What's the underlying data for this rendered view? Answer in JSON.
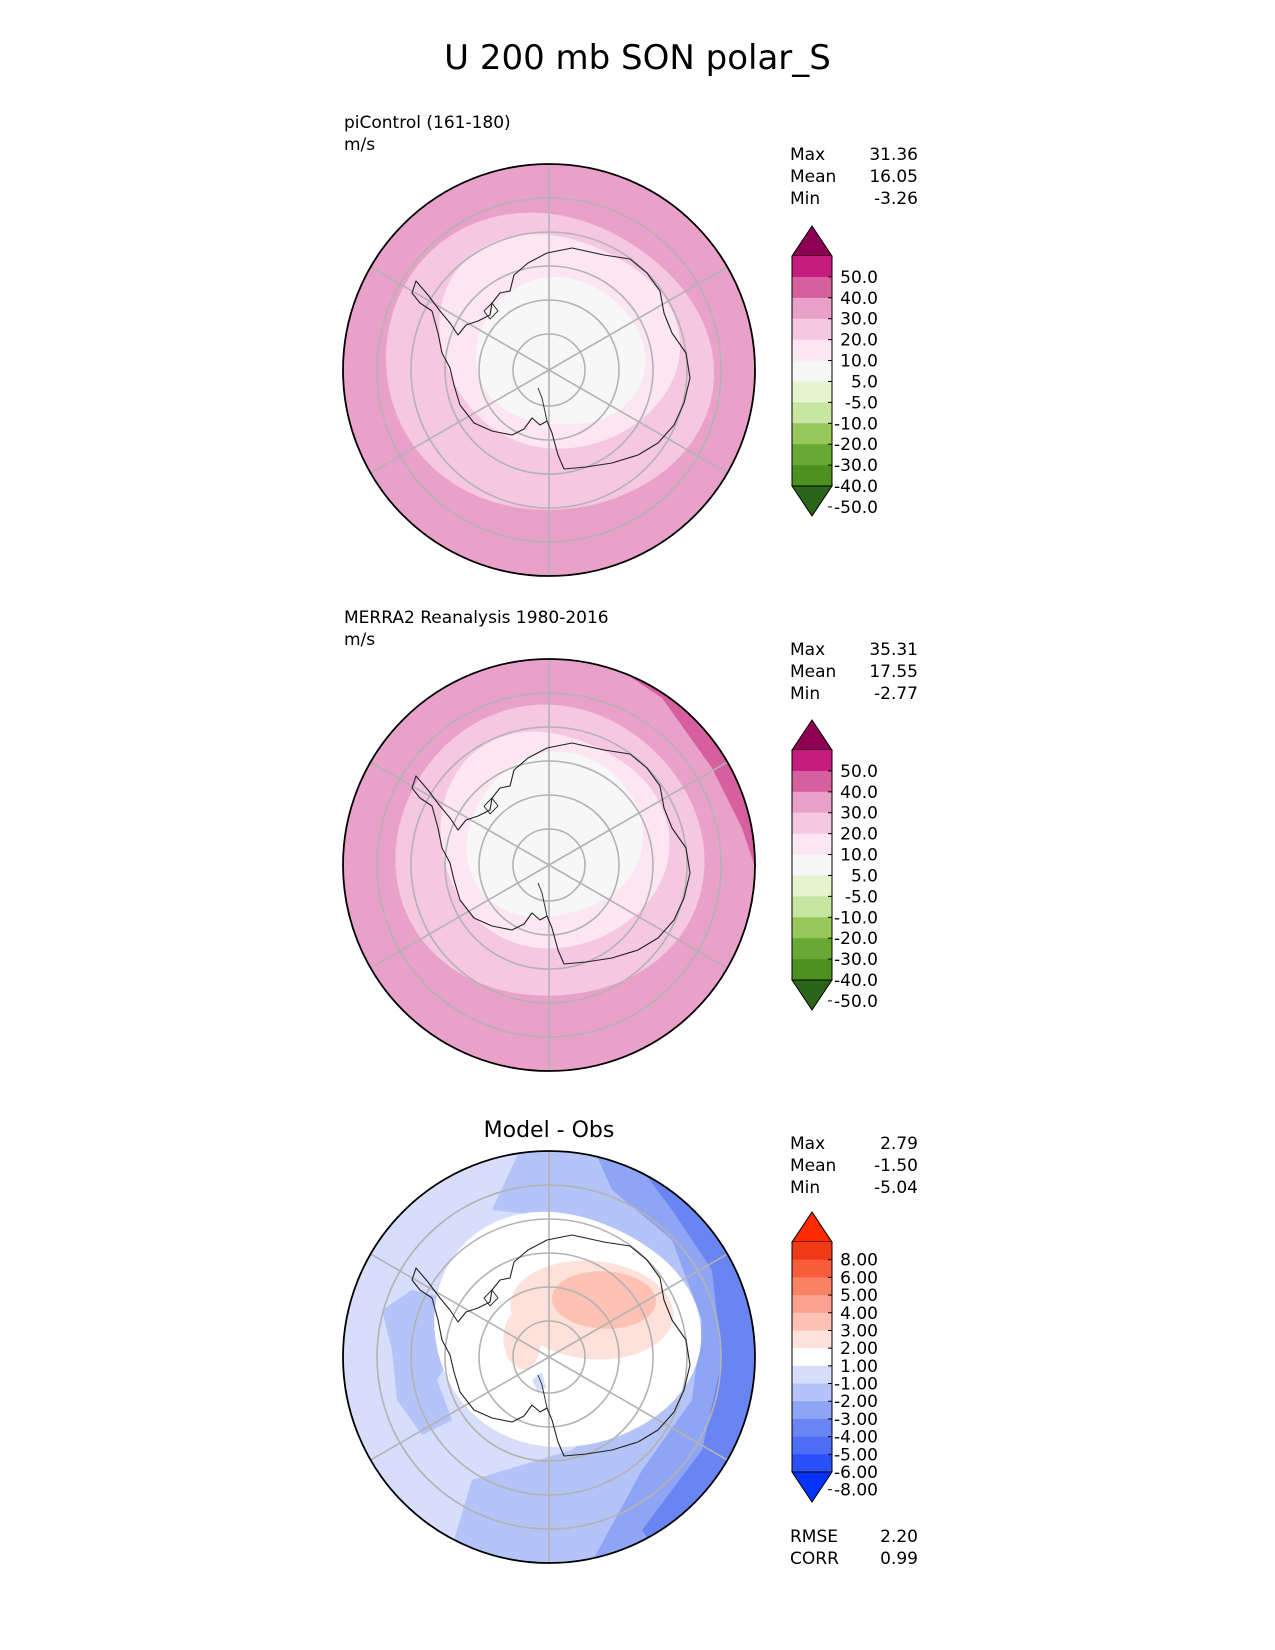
{
  "title": "U 200 mb SON polar_S",
  "palettes": {
    "pink_green": [
      "#276419",
      "#4d9221",
      "#7fbc41",
      "#b8e186",
      "#e6f5d0",
      "#f7f7f7",
      "#fde0ef",
      "#f1b6da",
      "#de77ae",
      "#c51b7d",
      "#8e0152"
    ],
    "pink_green_fill": [
      "#2a6519",
      "#4d9221",
      "#6aa834",
      "#98c85c",
      "#c7e6a2",
      "#e6f5d0",
      "#f7f7f7",
      "#fbe6f1",
      "#f5c7e1",
      "#eaa1c9",
      "#d85f9f",
      "#c51b7d",
      "#8e0152"
    ],
    "diff_fill": [
      "#0433ff",
      "#2a50fb",
      "#4d6df6",
      "#6a85f2",
      "#8ea5f5",
      "#b4c3f8",
      "#d6defb",
      "#ffffff",
      "#fde1da",
      "#fdc2b4",
      "#fca38f",
      "#fb8164",
      "#f75d3a",
      "#f03a15",
      "#ff2a00"
    ]
  },
  "chart_data": [
    {
      "type": "heatmap",
      "projection": "south-polar-stereographic",
      "title": "piControl (161-180)",
      "units": "m/s",
      "stats": {
        "max_label": "Max",
        "max": "31.36",
        "mean_label": "Mean",
        "mean": "16.05",
        "min_label": "Min",
        "min": "-3.26"
      },
      "colorbar": {
        "ticks": [
          "50.0",
          "40.0",
          "30.0",
          "20.0",
          "10.0",
          "5.0",
          "-5.0",
          "-10.0",
          "-20.0",
          "-30.0",
          "-40.0",
          "-50.0"
        ],
        "levels": [
          50,
          40,
          30,
          20,
          10,
          5,
          -5,
          -10,
          -20,
          -30,
          -40,
          -50
        ]
      }
    },
    {
      "type": "heatmap",
      "projection": "south-polar-stereographic",
      "title": "MERRA2 Reanalysis 1980-2016",
      "units": "m/s",
      "stats": {
        "max_label": "Max",
        "max": "35.31",
        "mean_label": "Mean",
        "mean": "17.55",
        "min_label": "Min",
        "min": "-2.77"
      },
      "colorbar": {
        "ticks": [
          "50.0",
          "40.0",
          "30.0",
          "20.0",
          "10.0",
          "5.0",
          "-5.0",
          "-10.0",
          "-20.0",
          "-30.0",
          "-40.0",
          "-50.0"
        ],
        "levels": [
          50,
          40,
          30,
          20,
          10,
          5,
          -5,
          -10,
          -20,
          -30,
          -40,
          -50
        ]
      }
    },
    {
      "type": "heatmap",
      "projection": "south-polar-stereographic",
      "title": "Model - Obs",
      "stats": {
        "max_label": "Max",
        "max": "2.79",
        "mean_label": "Mean",
        "mean": "-1.50",
        "min_label": "Min",
        "min": "-5.04",
        "rmse_label": "RMSE",
        "rmse": "2.20",
        "corr_label": "CORR",
        "corr": "0.99"
      },
      "colorbar": {
        "ticks": [
          "8.00",
          "6.00",
          "5.00",
          "4.00",
          "3.00",
          "2.00",
          "1.00",
          "-1.00",
          "-2.00",
          "-3.00",
          "-4.00",
          "-5.00",
          "-6.00",
          "-8.00"
        ],
        "levels": [
          8,
          6,
          5,
          4,
          3,
          2,
          1,
          -1,
          -2,
          -3,
          -4,
          -5,
          -6,
          -8
        ]
      }
    }
  ]
}
